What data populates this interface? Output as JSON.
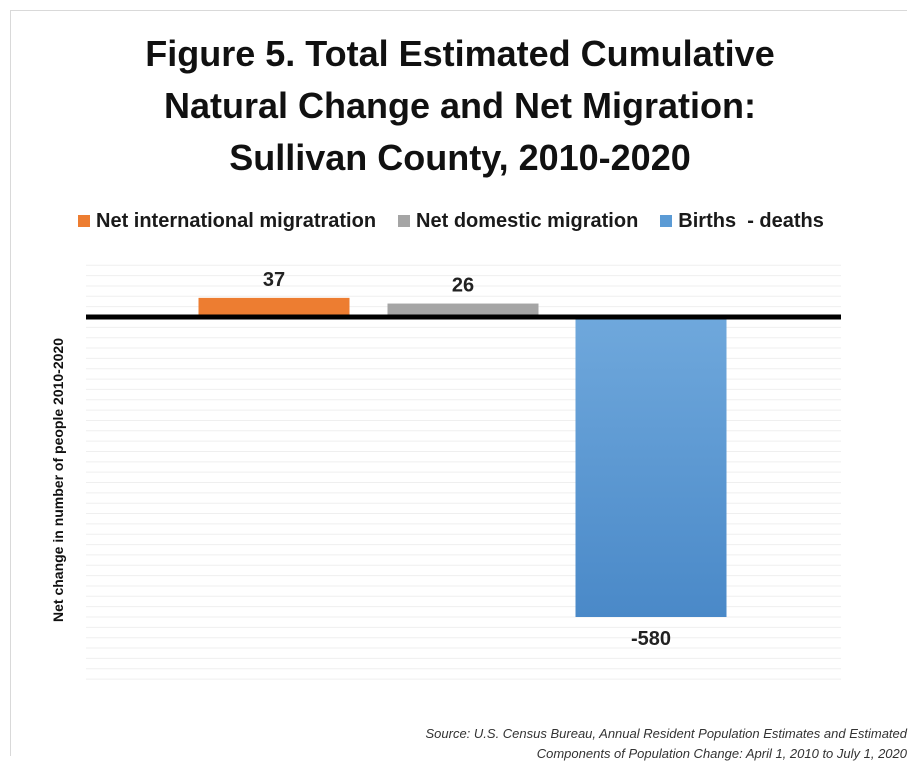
{
  "chart_data": {
    "type": "bar",
    "title_lines": [
      "Figure 5. Total Estimated Cumulative",
      "Natural Change and Net Migration:",
      "Sullivan County, 2010-2020"
    ],
    "ylabel": "Net change in number of people 2010-2020",
    "series": [
      {
        "name": "Net international migratration",
        "value": 37,
        "label": "37",
        "color": "#ed7d31"
      },
      {
        "name": "Net domestic migration",
        "value": 26,
        "label": "26",
        "color": "#a5a5a5"
      },
      {
        "name": "Births  - deaths",
        "value": -580,
        "label": "-580",
        "color": "#5b9bd5"
      }
    ],
    "ylim": [
      -700,
      100
    ],
    "grid": true,
    "legend_position": "top",
    "source_lines": [
      "Source: U.S. Census Bureau, Annual Resident Population Estimates and Estimated",
      "Components of Population Change: April 1, 2010 to July 1, 2020"
    ]
  }
}
